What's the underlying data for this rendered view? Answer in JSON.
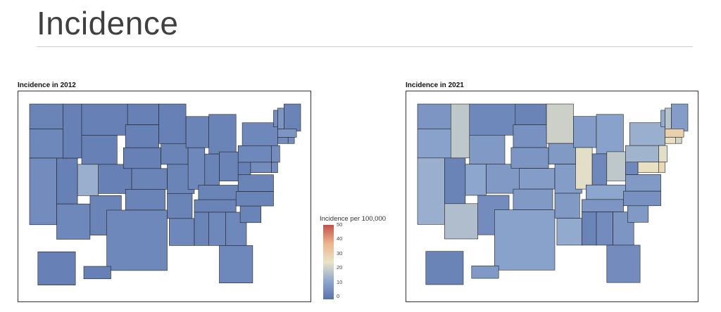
{
  "slide": {
    "title": "Incidence"
  },
  "colors": {
    "scale_low": "#5a73ad",
    "scale_lowmid": "#8fa8cf",
    "scale_mid": "#e9e3c6",
    "scale_midhigh": "#ecb58b",
    "scale_high": "#c2514c",
    "state_border": "#222222"
  },
  "chart_data": [
    {
      "type": "choropleth",
      "title": "Incidence in 2012",
      "legend": {
        "title": "Incidence per 100,000",
        "ticks": [
          "50",
          "40",
          "30",
          "20",
          "10",
          "0"
        ],
        "range": [
          0,
          50
        ]
      },
      "values": {
        "WA": 4,
        "OR": 5,
        "CA": 6,
        "NV": 3,
        "ID": 3,
        "MT": 3,
        "WY": 3,
        "UT": 14,
        "AZ": 5,
        "CO": 3,
        "NM": 4,
        "ND": 3,
        "SD": 3,
        "NE": 3,
        "KS": 4,
        "OK": 4,
        "TX": 5,
        "MN": 3,
        "IA": 4,
        "MO": 4,
        "AR": 4,
        "LA": 5,
        "WI": 4,
        "IL": 5,
        "MI": 4,
        "IN": 4,
        "OH": 4,
        "KY": 4,
        "TN": 4,
        "MS": 4,
        "AL": 5,
        "GA": 5,
        "FL": 5,
        "SC": 4,
        "NC": 4,
        "VA": 4,
        "WV": 3,
        "PA": 5,
        "NY": 5,
        "ME": 4,
        "NH": 8,
        "VT": 6,
        "MA": 8,
        "CT": 6,
        "RI": 6,
        "NJ": 6,
        "DE": 6,
        "MD": 6,
        "AK": 3,
        "HI": 3
      }
    },
    {
      "type": "choropleth",
      "title": "Incidence in 2021",
      "legend": {
        "title": "Incidence per 100,000",
        "ticks": [
          "50",
          "40",
          "30",
          "20",
          "10",
          "0"
        ],
        "range": [
          0,
          50
        ]
      },
      "values": {
        "WA": 8,
        "OR": 11,
        "CA": 14,
        "NV": 4,
        "ID": 19,
        "MT": 5,
        "WY": 9,
        "UT": 12,
        "AZ": 17,
        "CO": 9,
        "NM": 6,
        "ND": 4,
        "SD": 7,
        "NE": 8,
        "KS": 10,
        "OK": 9,
        "TX": 11,
        "MN": 21,
        "IA": 9,
        "MO": 10,
        "AR": 9,
        "LA": 13,
        "WI": 10,
        "IL": 24,
        "MI": 11,
        "IN": 5,
        "OH": 19,
        "KY": 12,
        "TN": 8,
        "MS": 4,
        "AL": 6,
        "GA": 8,
        "FL": 6,
        "SC": 9,
        "NC": 7,
        "VA": 9,
        "WV": 5,
        "PA": 15,
        "NY": 14,
        "ME": 10,
        "NH": 18,
        "VT": 13,
        "MA": 30,
        "CT": 26,
        "RI": 22,
        "NJ": 24,
        "DE": 28,
        "MD": 26,
        "AK": 4,
        "HI": 9
      }
    }
  ]
}
